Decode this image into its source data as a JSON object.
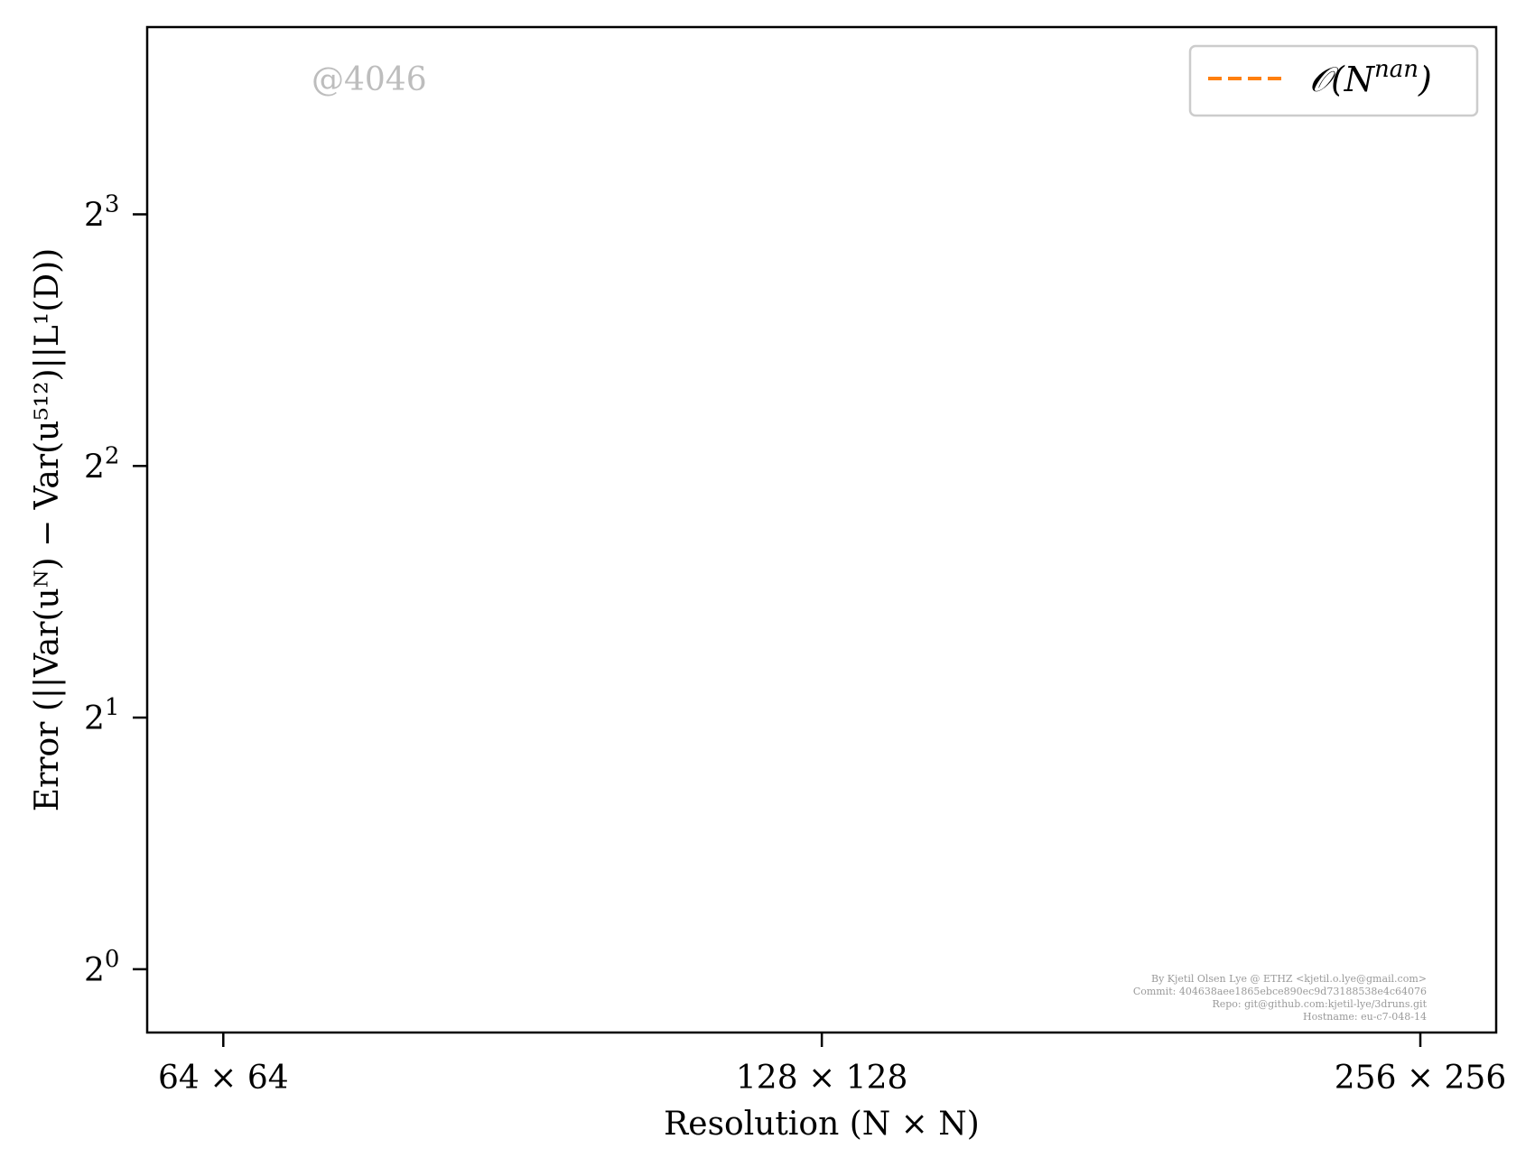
{
  "chart_data": {
    "type": "line",
    "title": "",
    "xlabel": "Resolution (N × N)",
    "ylabel": "Error (||Var(uᴺ) − Var(u⁵¹²)||L¹(D))",
    "x_scale": "log2",
    "y_scale": "log2",
    "x": [
      64,
      128,
      256
    ],
    "x_tick_labels": [
      "64 × 64",
      "128 × 128",
      "256 × 256"
    ],
    "y_ticks": [
      1,
      2,
      4,
      8
    ],
    "y_tick_labels": [
      {
        "base": "2",
        "exp": "0"
      },
      {
        "base": "2",
        "exp": "1"
      },
      {
        "base": "2",
        "exp": "2"
      },
      {
        "base": "2",
        "exp": "3"
      }
    ],
    "xlim": [
      58.6,
      279.5
    ],
    "ylim": [
      0.84,
      13.4
    ],
    "grid": false,
    "legend_position": "top-right",
    "series": [
      {
        "name": "𝒪(Nⁿᵃⁿ)",
        "name_base": "𝒪(N",
        "name_exp": "nan",
        "name_close": ")",
        "style": "dashed",
        "color": "#ff7f0e",
        "values": [
          null,
          null,
          null
        ]
      }
    ],
    "annotations": {
      "watermark": "@4046",
      "credits": [
        "By Kjetil Olsen Lye @ ETHZ <kjetil.o.lye@gmail.com>",
        "Commit: 404638aee1865ebce890ec9d73188538e4c64076",
        "Repo: git@github.com:kjetil-lye/3druns.git",
        "Hostname: eu-c7-048-14"
      ]
    }
  }
}
